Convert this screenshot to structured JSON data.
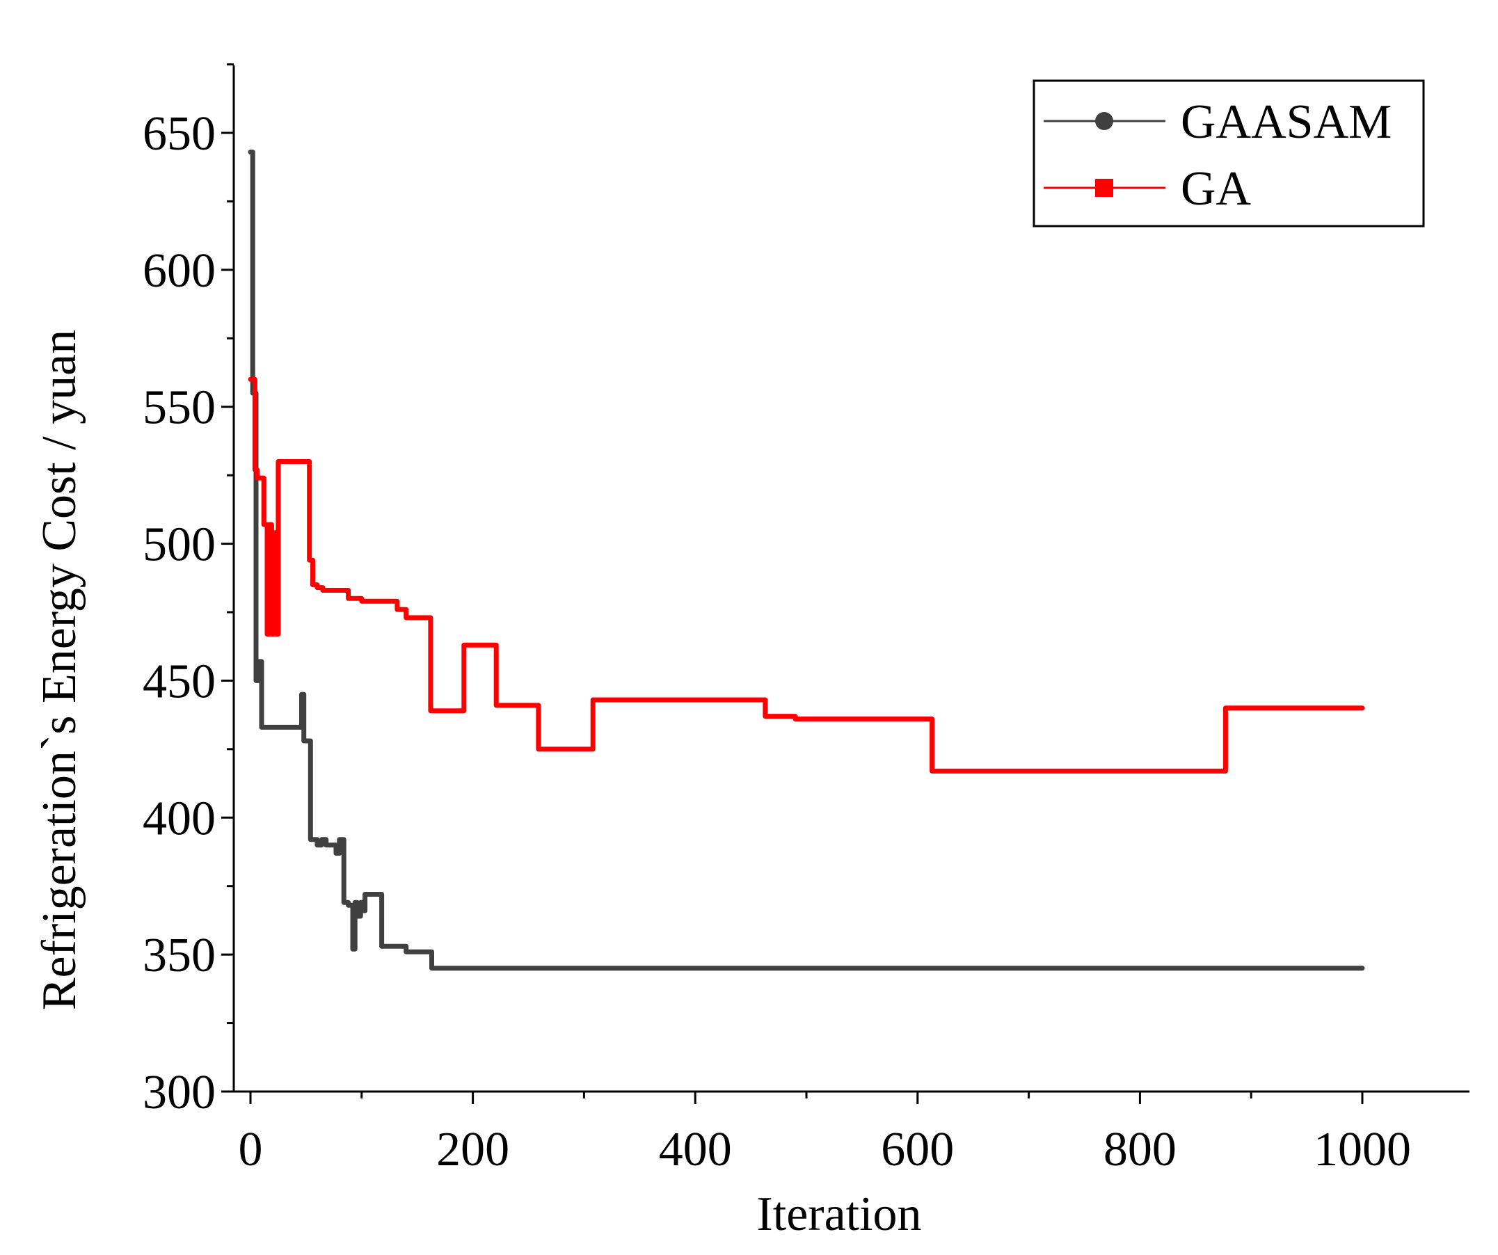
{
  "chart_data": {
    "type": "line",
    "title": "",
    "xlabel": "Iteration",
    "ylabel": "Refrigeration`s Energy Cost / yuan",
    "xlim": [
      0,
      1100
    ],
    "ylim": [
      300,
      675
    ],
    "xticks": [
      0,
      200,
      400,
      600,
      800,
      1000
    ],
    "xtick_labels": [
      "0",
      "200",
      "400",
      "600",
      "800",
      "1000"
    ],
    "yticks": [
      300,
      350,
      400,
      450,
      500,
      550,
      600,
      650
    ],
    "ytick_labels": [
      "300",
      "350",
      "400",
      "450",
      "500",
      "550",
      "600",
      "650"
    ],
    "legend_position": "top-right",
    "series": [
      {
        "name": "GAASAM",
        "color": "#404040",
        "marker": "circle",
        "x": [
          0,
          2,
          2,
          5,
          5,
          8,
          8,
          10,
          10,
          46,
          46,
          48,
          48,
          54,
          54,
          60,
          60,
          64,
          64,
          68,
          68,
          77,
          77,
          80,
          80,
          84,
          84,
          88,
          88,
          92,
          92,
          94,
          94,
          96,
          96,
          99,
          99,
          101,
          101,
          103,
          103,
          118,
          118,
          140,
          140,
          145,
          145,
          163,
          163,
          1000
        ],
        "y": [
          643,
          643,
          555,
          555,
          450,
          450,
          457,
          457,
          433,
          433,
          445,
          445,
          428,
          428,
          392,
          392,
          390,
          390,
          392,
          392,
          390,
          390,
          387,
          387,
          392,
          392,
          369,
          369,
          368,
          368,
          352,
          352,
          369,
          369,
          364,
          364,
          369,
          369,
          366,
          366,
          372,
          372,
          353,
          353,
          351,
          351,
          351,
          351,
          345,
          345
        ]
      },
      {
        "name": "GA",
        "color": "#ff0000",
        "marker": "square",
        "x": [
          0,
          4,
          4,
          6,
          6,
          12,
          12,
          15,
          15,
          17,
          17,
          19,
          19,
          21,
          21,
          23,
          23,
          25,
          25,
          53,
          53,
          56,
          56,
          60,
          60,
          65,
          65,
          88,
          88,
          100,
          100,
          132,
          132,
          140,
          140,
          162,
          162,
          192,
          192,
          221,
          221,
          259,
          259,
          308,
          308,
          463,
          463,
          490,
          490,
          613,
          613,
          877,
          877,
          1000
        ],
        "y": [
          560,
          560,
          527,
          527,
          524,
          524,
          507,
          507,
          467,
          467,
          507,
          507,
          467,
          467,
          504,
          504,
          467,
          467,
          530,
          530,
          494,
          494,
          485,
          485,
          484,
          484,
          483,
          483,
          480,
          480,
          479,
          479,
          476,
          476,
          473,
          473,
          439,
          439,
          463,
          463,
          441,
          441,
          425,
          425,
          443,
          443,
          437,
          437,
          436,
          436,
          417,
          417,
          440,
          440
        ]
      }
    ]
  }
}
